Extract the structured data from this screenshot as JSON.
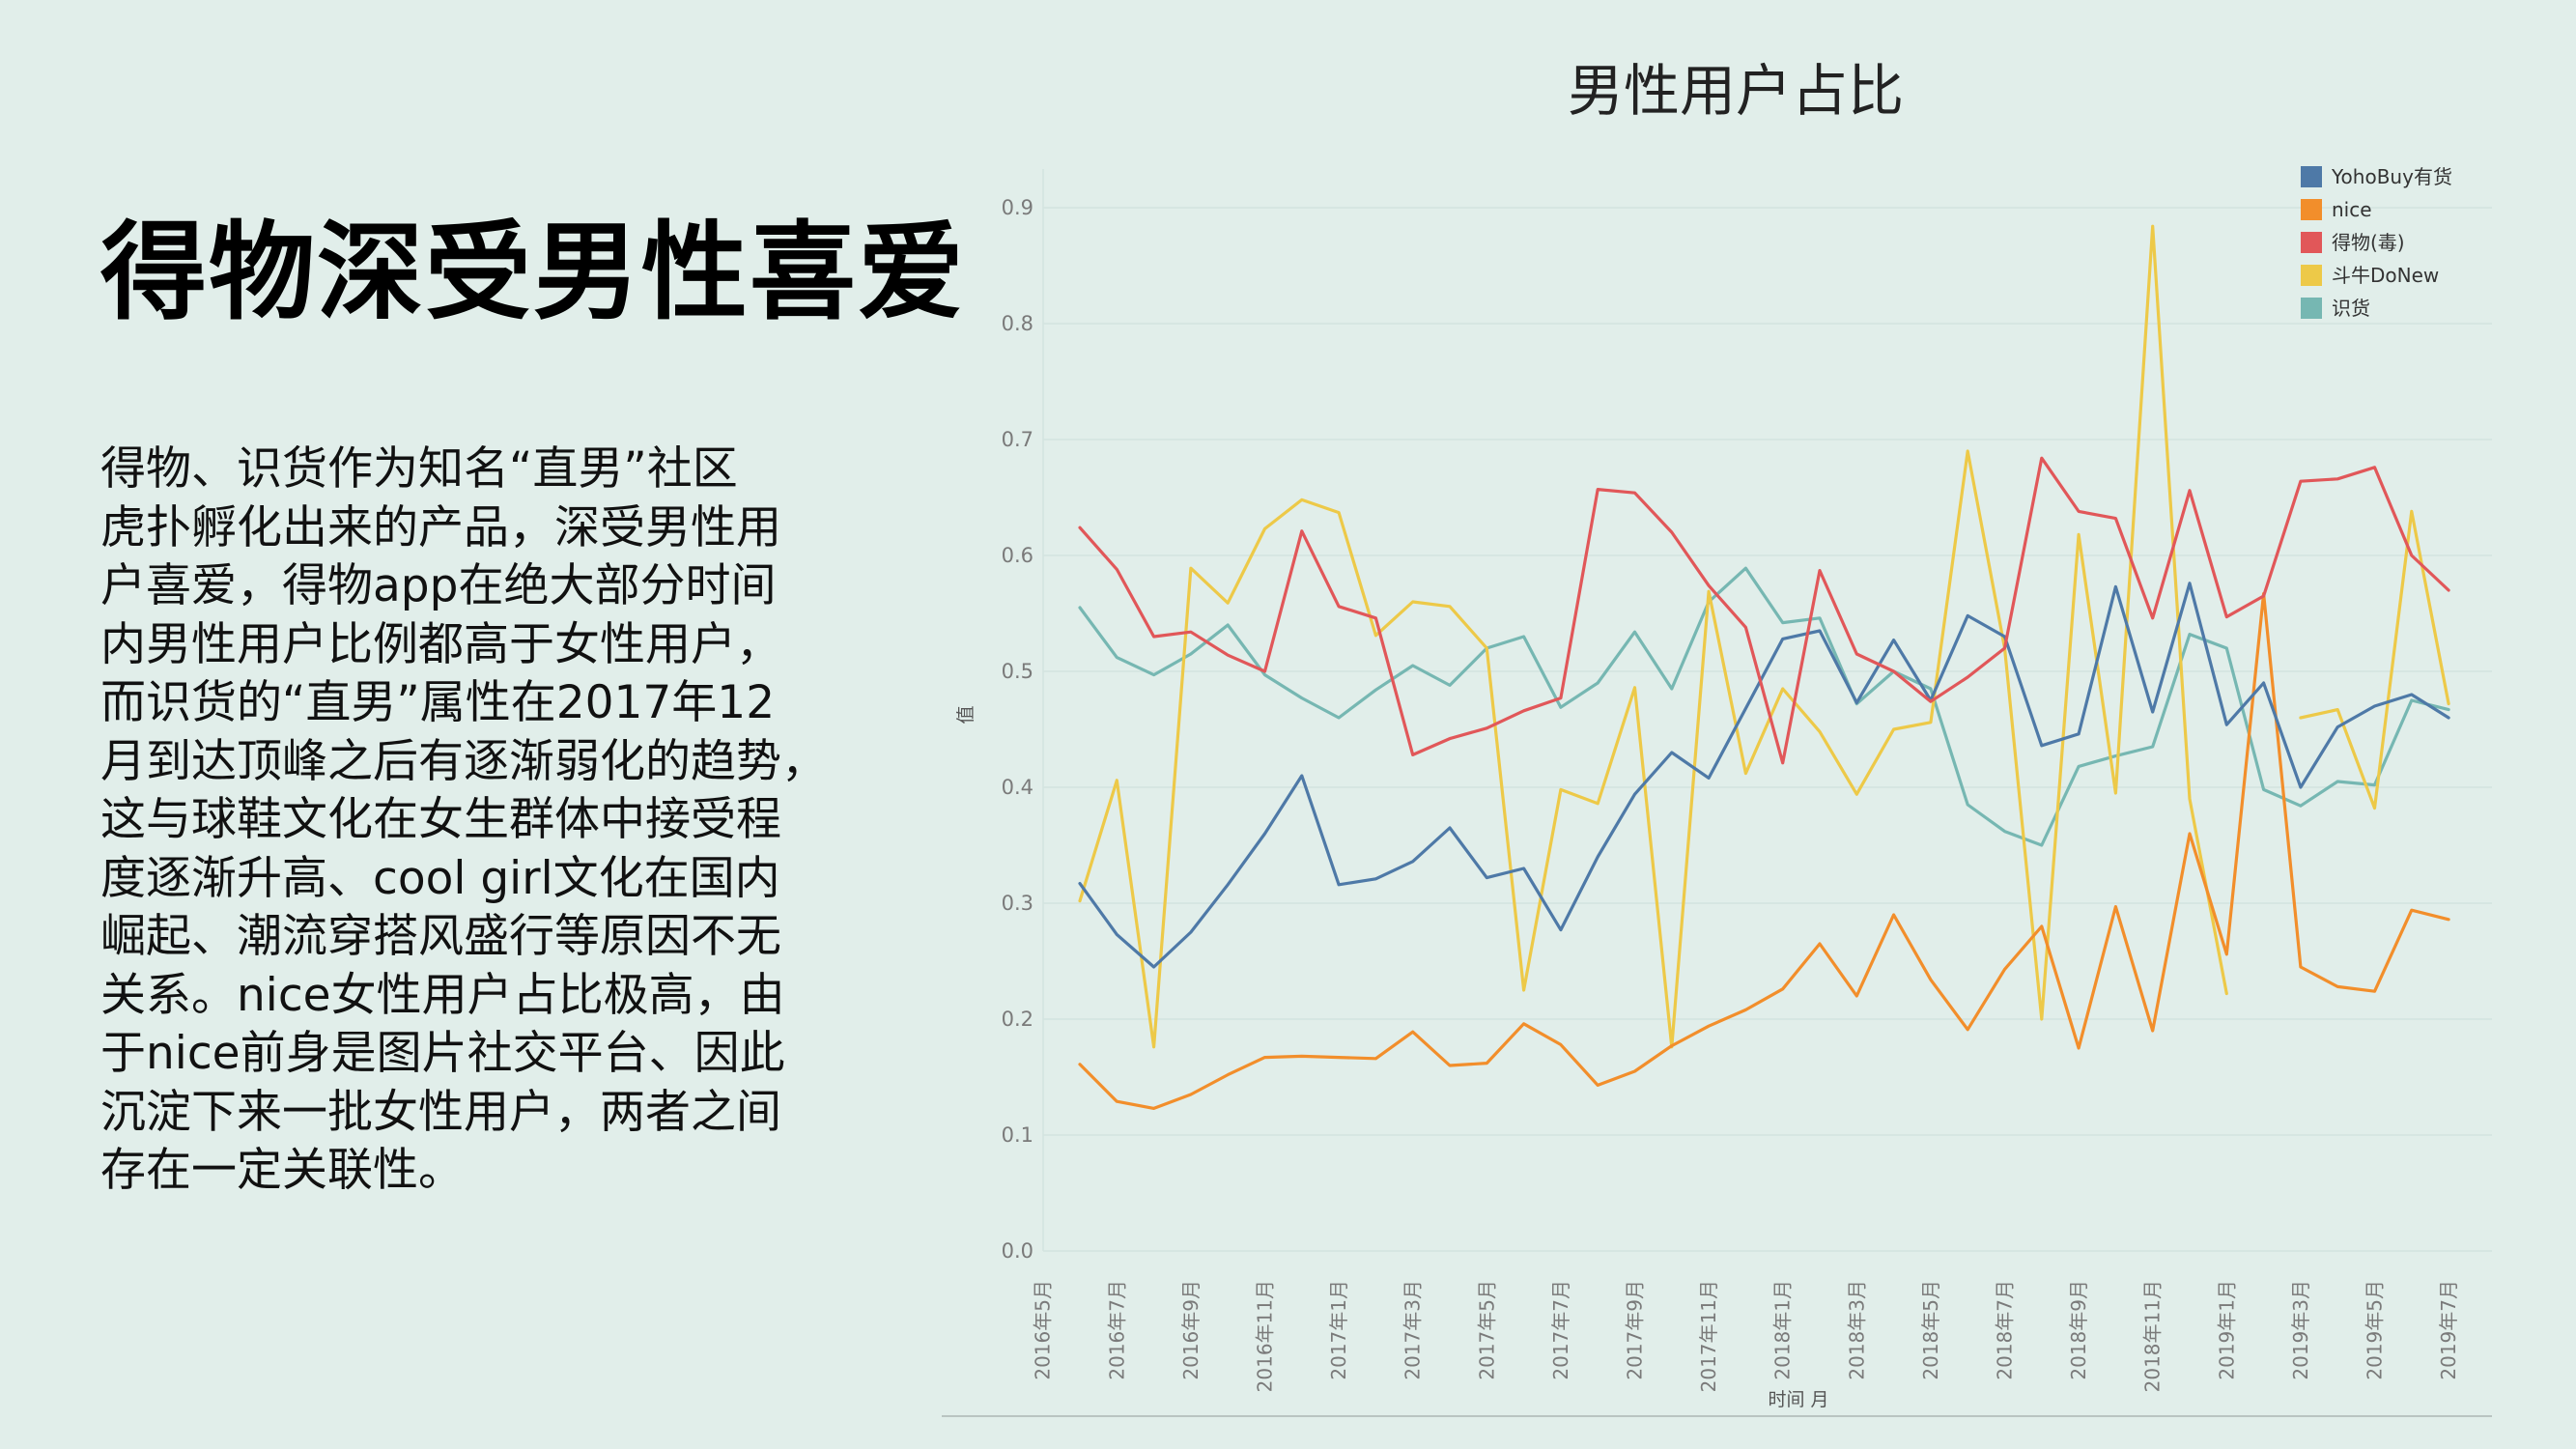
{
  "headline": "得物深受男性喜爱",
  "body_lines": [
    "得物、识货作为知名“直男”社区",
    "虎扑孵化出来的产品，深受男性用",
    "户喜爱，得物app在绝大部分时间",
    "内男性用户比例都高于女性用户，",
    "而识货的“直男”属性在2017年12",
    "月到达顶峰之后有逐渐弱化的趋势，",
    "这与球鞋文化在女生群体中接受程",
    "度逐渐升高、cool girl文化在国内",
    "崛起、潮流穿搭风盛行等原因不无",
    "关系。nice女性用户占比极高，由",
    "于nice前身是图片社交平台、因此",
    "沉淀下来一批女性用户，两者之间",
    "存在一定关联性。"
  ],
  "chart_data": {
    "type": "line",
    "title": "男性用户占比",
    "xlabel": "时间 月",
    "ylabel": "值",
    "ylim": [
      0,
      0.9
    ],
    "yticks": [
      "0.0",
      "0.1",
      "0.2",
      "0.3",
      "0.4",
      "0.5",
      "0.6",
      "0.7",
      "0.8",
      "0.9"
    ],
    "grid": true,
    "legend_position": "top-right",
    "x_tick_labels": [
      "2016年5月",
      "2016年7月",
      "2016年9月",
      "2016年11月",
      "2017年1月",
      "2017年3月",
      "2017年5月",
      "2017年7月",
      "2017年9月",
      "2017年11月",
      "2018年1月",
      "2018年3月",
      "2018年5月",
      "2018年7月",
      "2018年9月",
      "2018年11月",
      "2019年1月",
      "2019年3月",
      "2019年5月",
      "2019年7月"
    ],
    "x": [
      "2016-06",
      "2016-07",
      "2016-08",
      "2016-09",
      "2016-10",
      "2016-11",
      "2016-12",
      "2017-01",
      "2017-02",
      "2017-03",
      "2017-04",
      "2017-05",
      "2017-06",
      "2017-07",
      "2017-08",
      "2017-09",
      "2017-10",
      "2017-11",
      "2017-12",
      "2018-01",
      "2018-02",
      "2018-03",
      "2018-04",
      "2018-05",
      "2018-06",
      "2018-07",
      "2018-08",
      "2018-09",
      "2018-10",
      "2018-11",
      "2018-12",
      "2019-01",
      "2019-02",
      "2019-03",
      "2019-04",
      "2019-05",
      "2019-06",
      "2019-07"
    ],
    "series": [
      {
        "name": "YohoBuy有货",
        "color": "#4e79a7",
        "values": [
          0.317,
          0.273,
          0.245,
          0.275,
          0.316,
          0.36,
          0.41,
          0.316,
          0.321,
          0.336,
          0.365,
          0.322,
          0.33,
          0.277,
          0.34,
          0.394,
          0.43,
          0.408,
          0.468,
          0.528,
          0.535,
          0.473,
          0.527,
          0.475,
          0.548,
          0.53,
          0.436,
          0.446,
          0.573,
          0.465,
          0.576,
          0.454,
          0.49,
          0.4,
          0.452,
          0.47,
          0.48,
          0.46
        ]
      },
      {
        "name": "nice",
        "color": "#f28e2b",
        "values": [
          0.161,
          0.129,
          0.123,
          0.135,
          0.152,
          0.167,
          0.168,
          0.167,
          0.166,
          0.189,
          0.16,
          0.162,
          0.196,
          0.178,
          0.143,
          0.155,
          0.177,
          0.194,
          0.208,
          0.226,
          0.265,
          0.22,
          0.29,
          0.234,
          0.191,
          0.243,
          0.28,
          0.175,
          0.297,
          0.19,
          0.36,
          0.256,
          0.567,
          0.245,
          0.228,
          0.224,
          0.294,
          0.286
        ]
      },
      {
        "name": "得物(毒)",
        "color": "#e15759",
        "values": [
          0.624,
          0.588,
          0.53,
          0.534,
          0.514,
          0.5,
          0.621,
          0.556,
          0.546,
          0.428,
          0.442,
          0.451,
          0.466,
          0.477,
          0.657,
          0.654,
          0.62,
          0.574,
          0.538,
          0.421,
          0.587,
          0.515,
          0.5,
          0.474,
          0.495,
          0.52,
          0.684,
          0.638,
          0.632,
          0.546,
          0.656,
          0.547,
          0.565,
          0.664,
          0.666,
          0.676,
          0.6,
          0.57
        ]
      },
      {
        "name": "斗牛DoNew",
        "color": "#edc948",
        "values": [
          0.302,
          0.406,
          0.176,
          0.589,
          0.559,
          0.623,
          0.648,
          0.637,
          0.531,
          0.56,
          0.556,
          0.52,
          0.225,
          0.398,
          0.386,
          0.486,
          0.176,
          0.569,
          0.412,
          0.485,
          0.448,
          0.394,
          0.45,
          0.456,
          0.69,
          0.52,
          0.2,
          0.618,
          0.395,
          0.884,
          0.39,
          0.222,
          null,
          0.46,
          0.467,
          0.382,
          0.638,
          0.472
        ]
      },
      {
        "name": "识货",
        "color": "#76b7b2",
        "values": [
          0.555,
          0.512,
          0.497,
          0.515,
          0.54,
          0.497,
          0.477,
          0.46,
          0.484,
          0.505,
          0.488,
          0.52,
          0.53,
          0.469,
          0.49,
          0.534,
          0.485,
          0.56,
          0.589,
          0.542,
          0.546,
          0.472,
          0.5,
          0.485,
          0.385,
          0.362,
          0.35,
          0.418,
          0.427,
          0.435,
          0.532,
          0.52,
          0.398,
          0.384,
          0.405,
          0.402,
          0.475,
          0.467
        ]
      }
    ]
  }
}
